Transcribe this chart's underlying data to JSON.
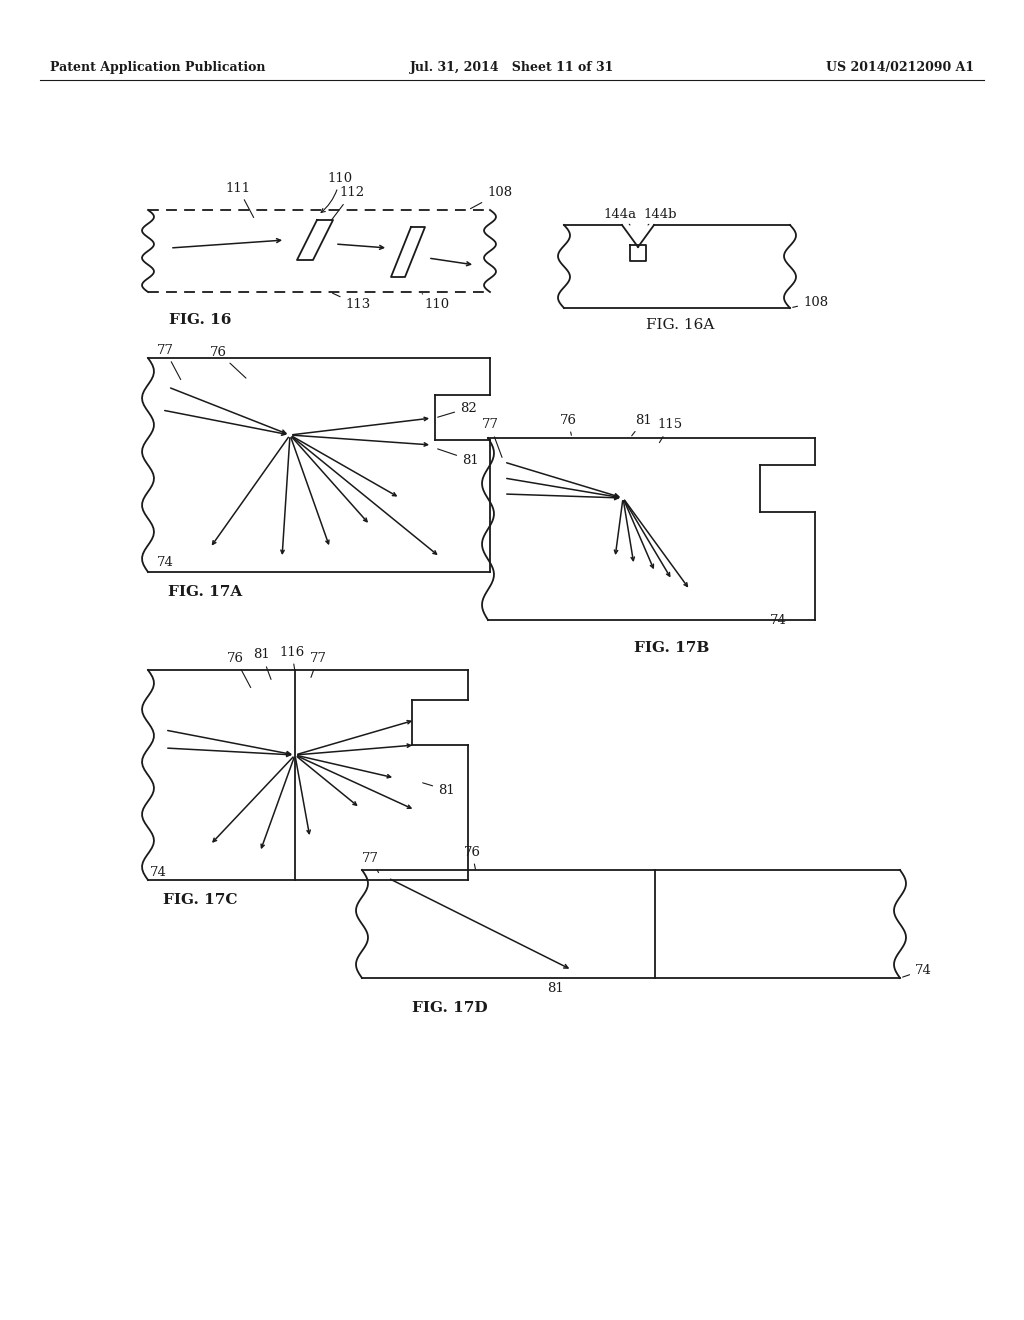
{
  "bg_color": "#ffffff",
  "line_color": "#1a1a1a",
  "header_left": "Patent Application Publication",
  "header_mid": "Jul. 31, 2014   Sheet 11 of 31",
  "header_right": "US 2014/0212090 A1"
}
